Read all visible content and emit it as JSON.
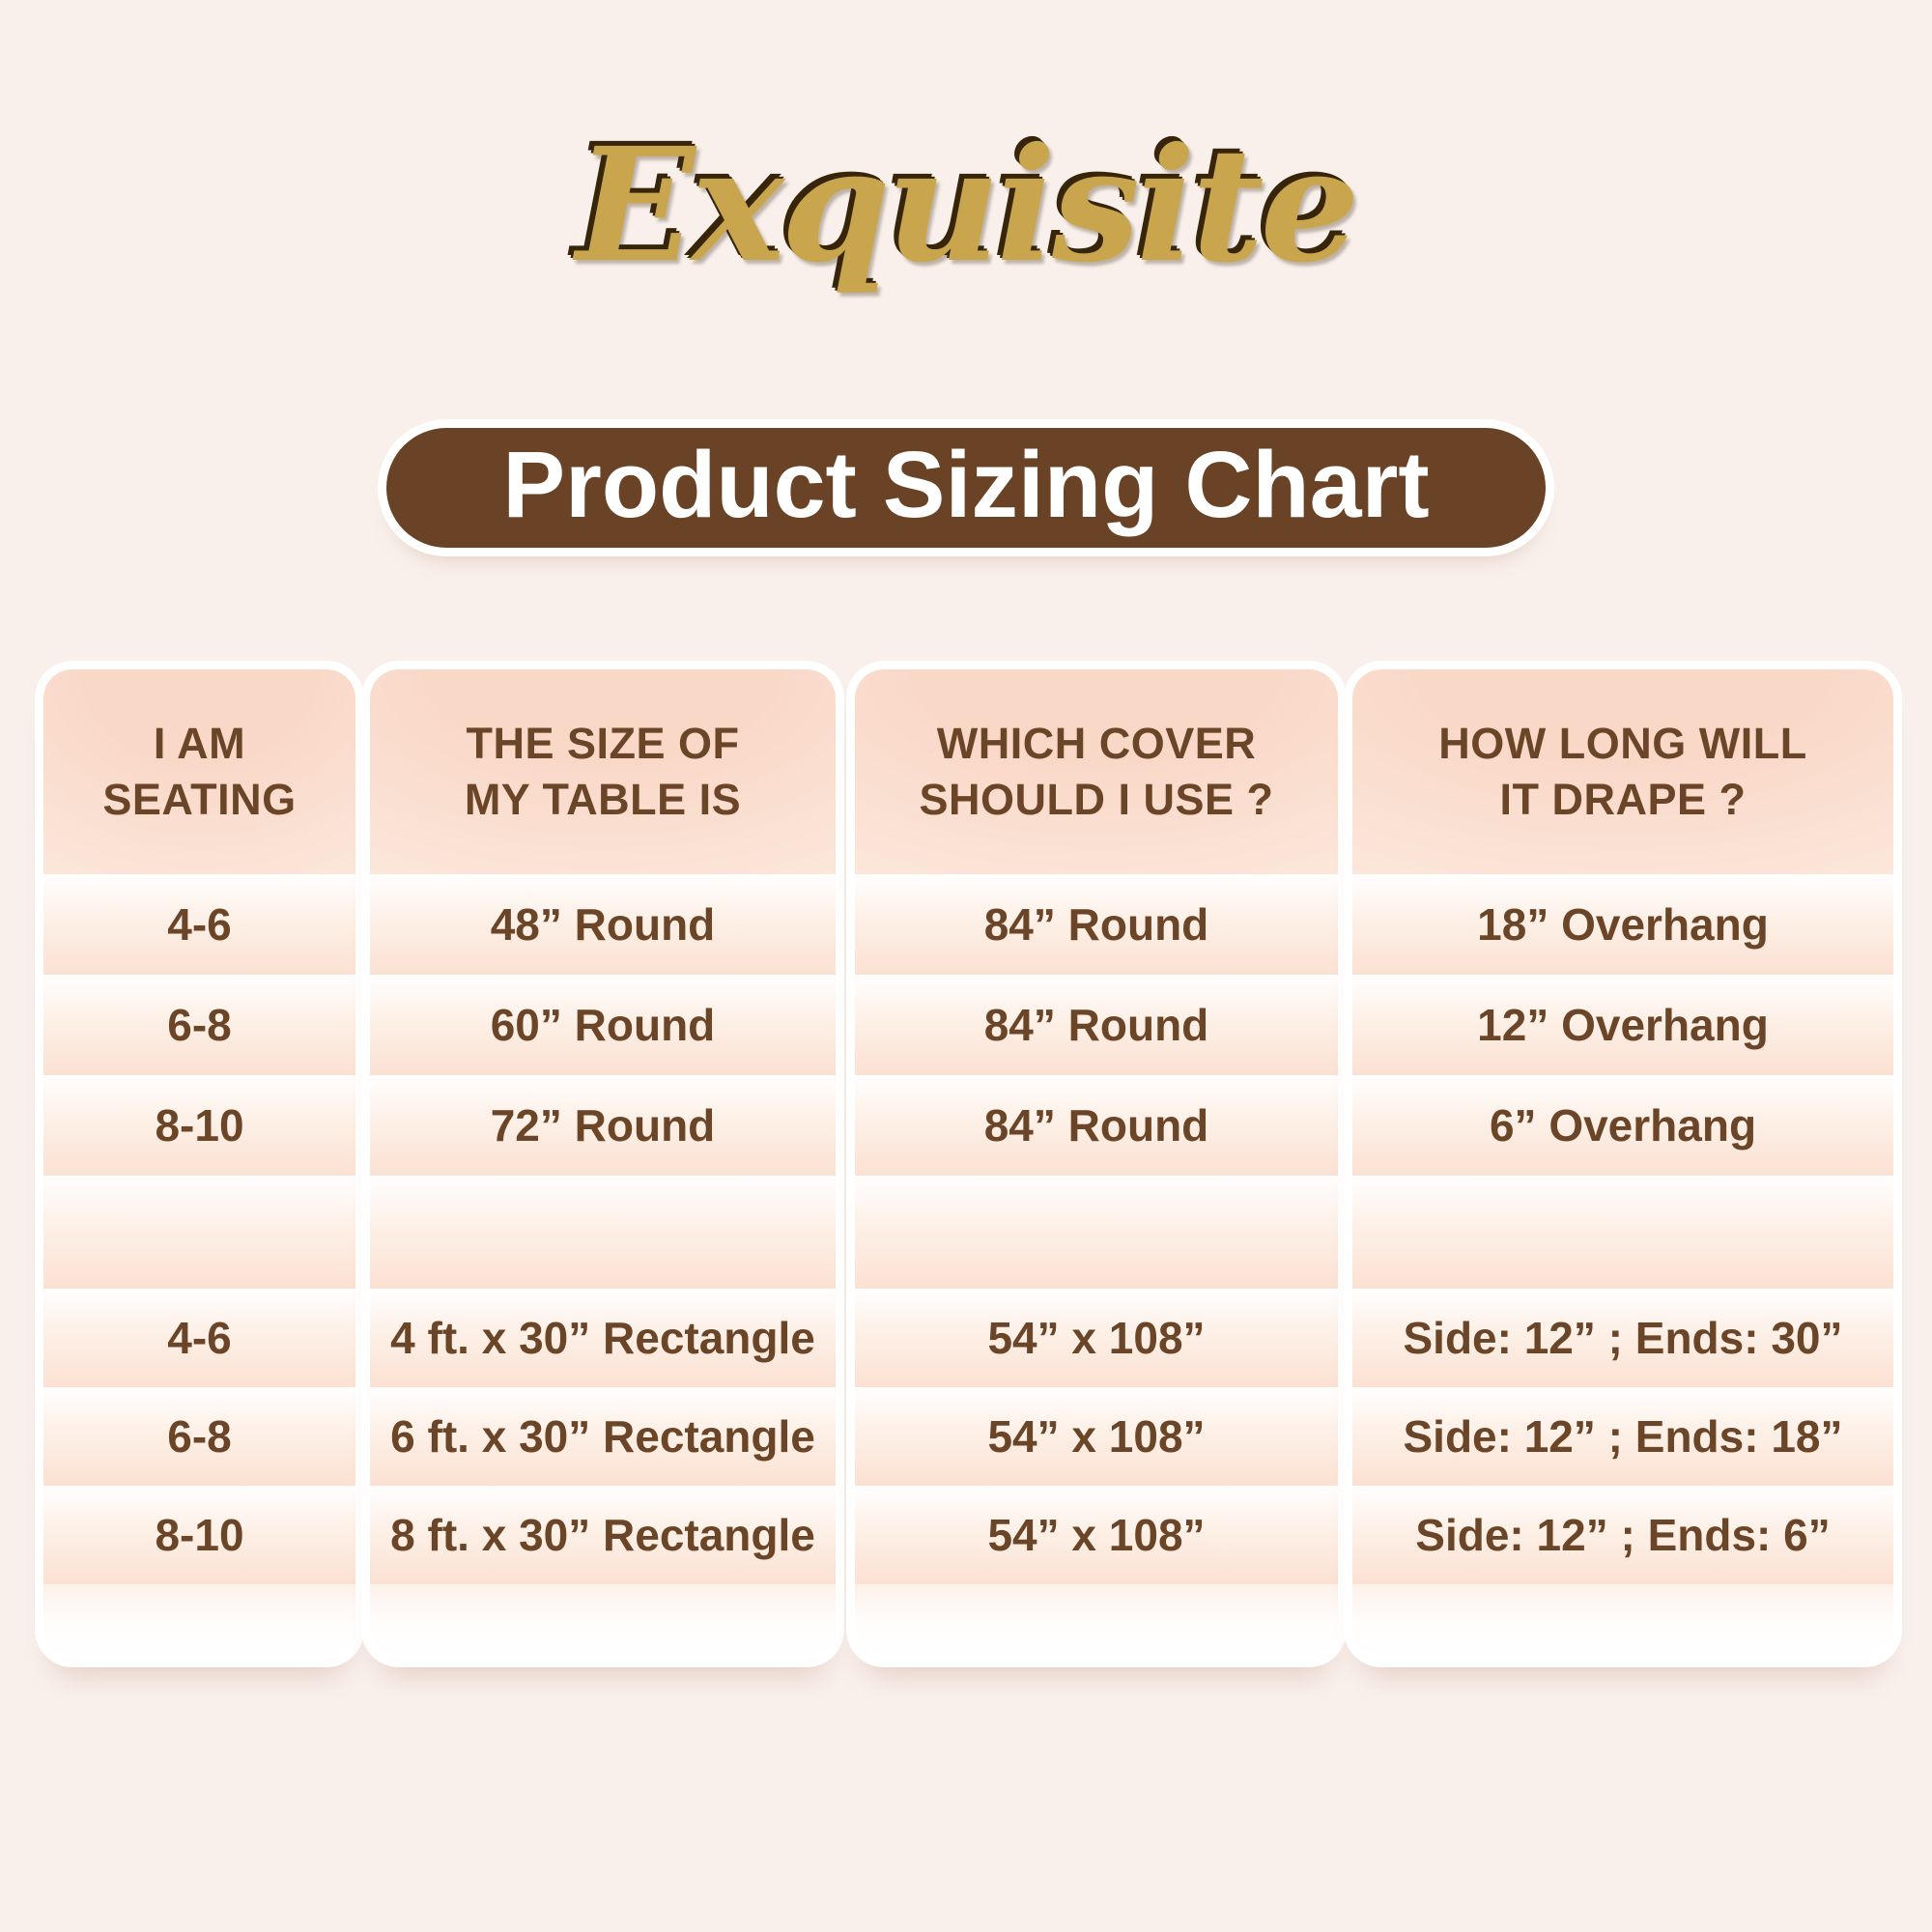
{
  "page": {
    "background_color": "#f9f0ec"
  },
  "logo": {
    "text": "Exquisite",
    "color": "#c9a54d",
    "shadow_color": "#362508"
  },
  "banner": {
    "title": "Product Sizing Chart",
    "bg_color": "#6a4326",
    "text_color": "#ffffff",
    "outline_color": "#ffffff"
  },
  "table": {
    "text_color": "#6b4528",
    "stripe_peach": "#fbe1d2",
    "columns": [
      {
        "header": "I AM\nSEATING",
        "rows": [
          "4-6",
          "6-8",
          "8-10",
          "",
          "4-6",
          "6-8",
          "8-10"
        ]
      },
      {
        "header": "THE SIZE OF\nMY TABLE IS",
        "rows": [
          "48” Round",
          "60” Round",
          "72” Round",
          "",
          "4 ft. x 30” Rectangle",
          "6 ft. x 30” Rectangle",
          "8 ft. x 30” Rectangle"
        ]
      },
      {
        "header": "WHICH COVER\nSHOULD I USE ?",
        "rows": [
          "84” Round",
          "84” Round",
          "84” Round",
          "",
          "54” x 108”",
          "54” x 108”",
          "54” x 108”"
        ]
      },
      {
        "header": "HOW LONG WILL\nIT DRAPE ?",
        "rows": [
          "18” Overhang",
          "12” Overhang",
          "6” Overhang",
          "",
          "Side: 12” ; Ends: 30”",
          "Side: 12” ; Ends: 18”",
          "Side: 12” ; Ends: 6”"
        ]
      }
    ]
  },
  "chart_data": {
    "type": "table",
    "title": "Product Sizing Chart",
    "columns": [
      "I AM SEATING",
      "THE SIZE OF MY TABLE IS",
      "WHICH COVER SHOULD I USE ?",
      "HOW LONG WILL IT DRAPE ?"
    ],
    "rows": [
      [
        "4-6",
        "48” Round",
        "84” Round",
        "18” Overhang"
      ],
      [
        "6-8",
        "60” Round",
        "84” Round",
        "12” Overhang"
      ],
      [
        "8-10",
        "72” Round",
        "84” Round",
        "6” Overhang"
      ],
      [
        "",
        "",
        "",
        ""
      ],
      [
        "4-6",
        "4 ft. x 30” Rectangle",
        "54” x 108”",
        "Side: 12” ; Ends: 30”"
      ],
      [
        "6-8",
        "6 ft. x 30” Rectangle",
        "54” x 108”",
        "Side: 12” ; Ends: 18”"
      ],
      [
        "8-10",
        "8 ft. x 30” Rectangle",
        "54” x 108”",
        "Side: 12” ; Ends: 6”"
      ]
    ]
  }
}
